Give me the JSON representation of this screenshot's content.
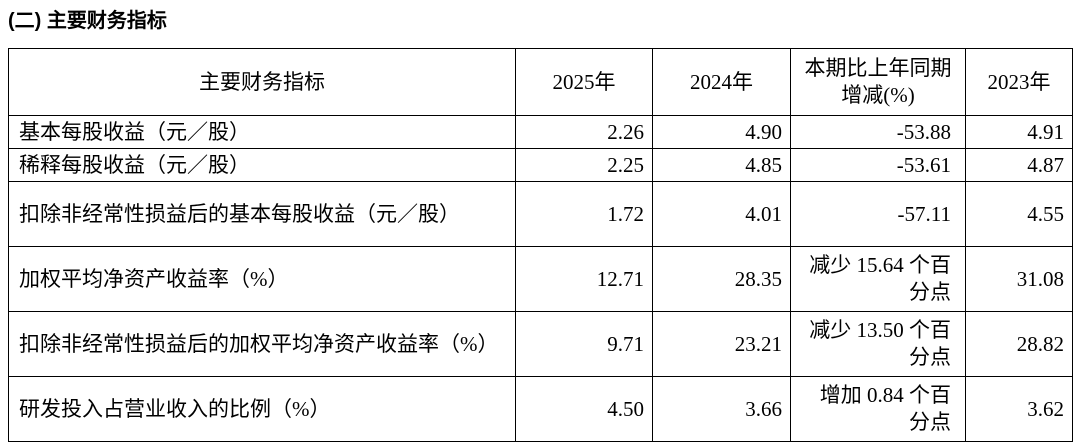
{
  "header": {
    "title": "(二) 主要财务指标"
  },
  "table": {
    "columns": [
      "主要财务指标",
      "2025年",
      "2024年",
      "本期比上年同期增减(%)",
      "2023年"
    ],
    "rows": [
      [
        "基本每股收益（元／股）",
        "2.26",
        "4.90",
        "-53.88",
        "4.91"
      ],
      [
        "稀释每股收益（元／股）",
        "2.25",
        "4.85",
        "-53.61",
        "4.87"
      ],
      [
        "扣除非经常性损益后的基本每股收益（元／股）",
        "1.72",
        "4.01",
        "-57.11",
        "4.55"
      ],
      [
        "加权平均净资产收益率（%）",
        "12.71",
        "28.35",
        "减少 15.64 个百分点",
        "31.08"
      ],
      [
        "扣除非经常性损益后的加权平均净资产收益率（%）",
        "9.71",
        "23.21",
        "减少 13.50 个百分点",
        "28.82"
      ],
      [
        "研发投入占营业收入的比例（%）",
        "4.50",
        "3.66",
        "增加 0.84 个百分点",
        "3.62"
      ]
    ]
  }
}
